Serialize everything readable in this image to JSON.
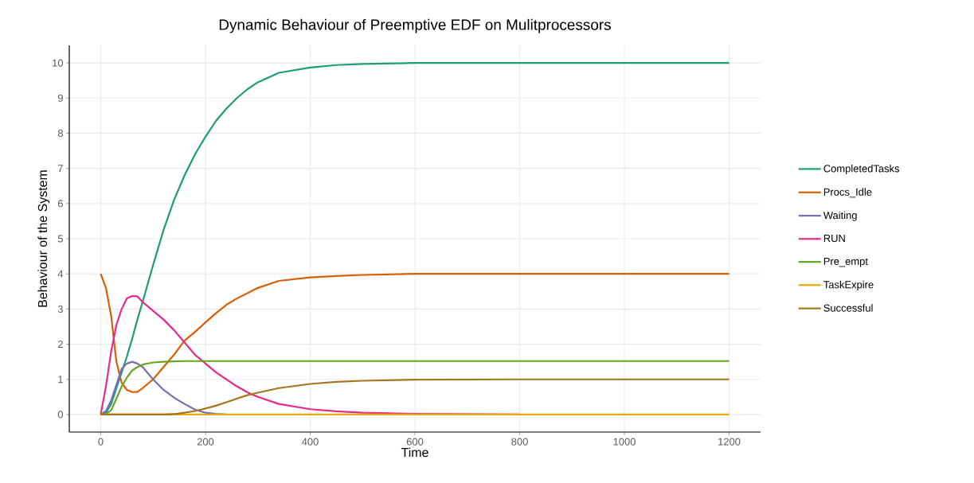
{
  "chart_data": {
    "type": "line",
    "title": "Dynamic Behaviour of Preemptive EDF on Mulitprocessors",
    "xlabel": "Time",
    "ylabel": "Behaviour of the System",
    "x": [
      0,
      10,
      20,
      30,
      40,
      50,
      60,
      70,
      80,
      100,
      120,
      140,
      160,
      180,
      200,
      220,
      240,
      260,
      280,
      300,
      340,
      400,
      450,
      500,
      600,
      800,
      1000,
      1200
    ],
    "series": [
      {
        "name": "CompletedTasks",
        "color": "#1b9e77",
        "values": [
          0,
          0.05,
          0.3,
          0.75,
          1.2,
          1.65,
          2.15,
          2.7,
          3.2,
          4.25,
          5.25,
          6.1,
          6.8,
          7.4,
          7.9,
          8.35,
          8.7,
          9.0,
          9.25,
          9.45,
          9.72,
          9.87,
          9.94,
          9.97,
          10,
          10,
          10,
          10
        ]
      },
      {
        "name": "Procs_Idle",
        "color": "#d95f02",
        "values": [
          4,
          3.6,
          2.8,
          1.5,
          0.9,
          0.7,
          0.64,
          0.64,
          0.75,
          1.0,
          1.35,
          1.7,
          2.1,
          2.35,
          2.62,
          2.88,
          3.12,
          3.3,
          3.45,
          3.6,
          3.8,
          3.9,
          3.94,
          3.97,
          4,
          4,
          4,
          4
        ]
      },
      {
        "name": "Waiting",
        "color": "#7570b3",
        "values": [
          0,
          0.1,
          0.4,
          0.85,
          1.3,
          1.45,
          1.5,
          1.45,
          1.35,
          1.0,
          0.7,
          0.48,
          0.3,
          0.14,
          0.05,
          0.02,
          0,
          null,
          null,
          null,
          null,
          null,
          null,
          null,
          null,
          null,
          null,
          null
        ]
      },
      {
        "name": "RUN",
        "color": "#e7298a",
        "values": [
          0,
          0.8,
          1.8,
          2.55,
          3.0,
          3.3,
          3.37,
          3.36,
          3.2,
          2.95,
          2.7,
          2.4,
          2.05,
          1.7,
          1.45,
          1.2,
          1.0,
          0.8,
          0.63,
          0.5,
          0.3,
          0.15,
          0.09,
          0.05,
          0.02,
          0,
          null,
          null
        ]
      },
      {
        "name": "Pre_empt",
        "color": "#66a61e",
        "values": [
          0,
          0.02,
          0.12,
          0.45,
          0.8,
          1.05,
          1.25,
          1.35,
          1.42,
          1.48,
          1.5,
          1.51,
          1.52,
          1.52,
          1.52,
          1.52,
          1.52,
          1.52,
          1.52,
          1.52,
          1.52,
          1.52,
          1.52,
          1.52,
          1.52,
          1.52,
          1.52,
          1.52
        ]
      },
      {
        "name": "TaskExpire",
        "color": "#e6ab02",
        "values": [
          0,
          0,
          0,
          0,
          0,
          0,
          0,
          0,
          0,
          0,
          0,
          0,
          0,
          0,
          0,
          0,
          0,
          0,
          0,
          0,
          0,
          0,
          0,
          0,
          0,
          0,
          0,
          0
        ]
      },
      {
        "name": "Successful",
        "color": "#a6761d",
        "values": [
          0,
          0,
          0,
          0,
          0,
          0,
          0,
          0,
          0,
          0,
          0,
          0.01,
          0.05,
          0.1,
          0.17,
          0.25,
          0.35,
          0.45,
          0.55,
          0.62,
          0.75,
          0.87,
          0.93,
          0.96,
          0.99,
          1,
          1,
          1
        ]
      }
    ],
    "xlim": [
      -60,
      1260
    ],
    "ylim": [
      -0.5,
      10.5
    ],
    "xticks": [
      0,
      200,
      400,
      600,
      800,
      1000,
      1200
    ],
    "yticks": [
      0,
      1,
      2,
      3,
      4,
      5,
      6,
      7,
      8,
      9,
      10
    ],
    "grid": true,
    "legend": "right",
    "marker": "none",
    "line_style": "solid"
  }
}
